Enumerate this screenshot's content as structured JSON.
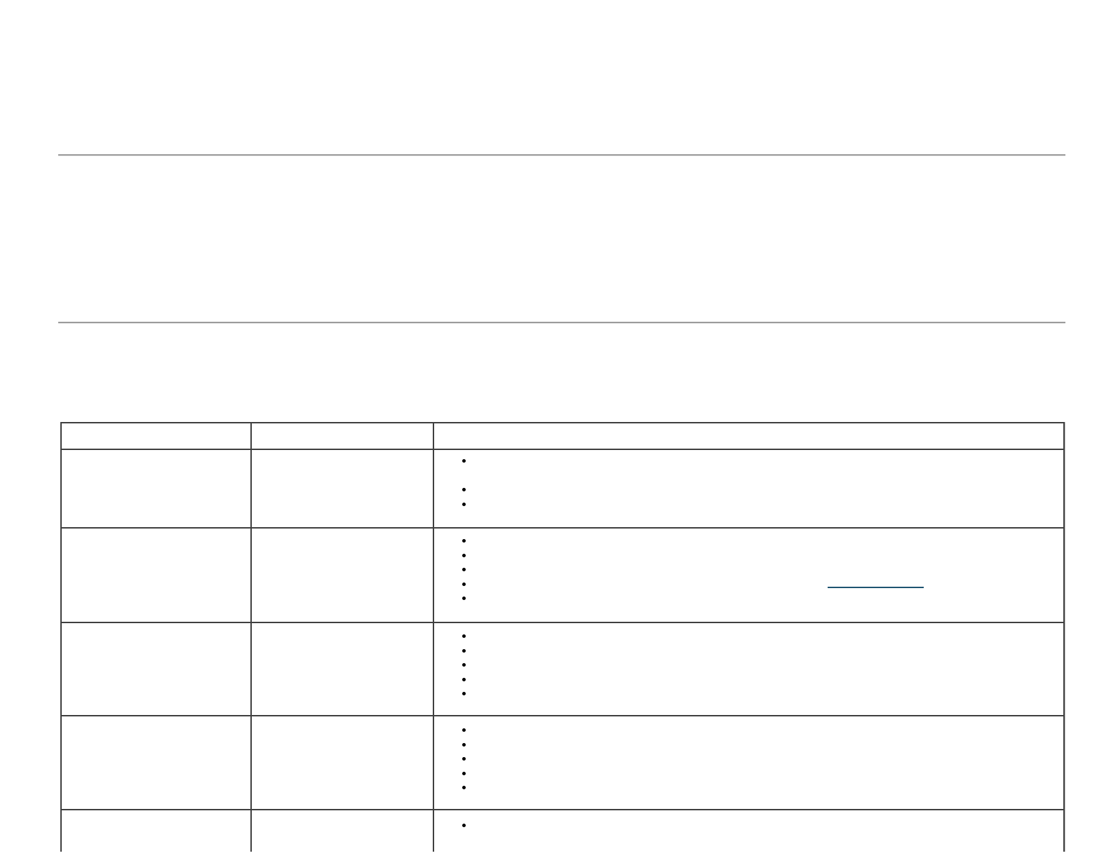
{
  "colors": {
    "background": "#ffffff",
    "horizontal_rule": "#9b9b9b",
    "table_border": "#3f3f3f",
    "table_border_outer": "#bfbfbf",
    "bullet": "#000000",
    "link_underline": "#1e5470"
  },
  "rules": {
    "count": 2
  },
  "table": {
    "header": [
      "",
      "",
      ""
    ],
    "rows": [
      {
        "symptom": "",
        "experience": "",
        "solutions": [
          {
            "text": "",
            "lines": 2
          },
          {
            "text": ""
          },
          {
            "text": ""
          }
        ]
      },
      {
        "symptom": "",
        "experience": "",
        "solutions": [
          {
            "text": ""
          },
          {
            "text": ""
          },
          {
            "text": ""
          },
          {
            "text": "",
            "link": {
              "label": ""
            }
          },
          {
            "text": ""
          }
        ]
      },
      {
        "symptom": "",
        "experience": "",
        "solutions": [
          {
            "text": ""
          },
          {
            "text": ""
          },
          {
            "text": ""
          },
          {
            "text": ""
          },
          {
            "text": ""
          }
        ]
      },
      {
        "symptom": "",
        "experience": "",
        "solutions": [
          {
            "text": ""
          },
          {
            "text": ""
          },
          {
            "text": ""
          },
          {
            "text": ""
          },
          {
            "text": ""
          }
        ]
      },
      {
        "symptom": "",
        "experience": "",
        "solutions": [
          {
            "text": ""
          }
        ]
      }
    ]
  }
}
